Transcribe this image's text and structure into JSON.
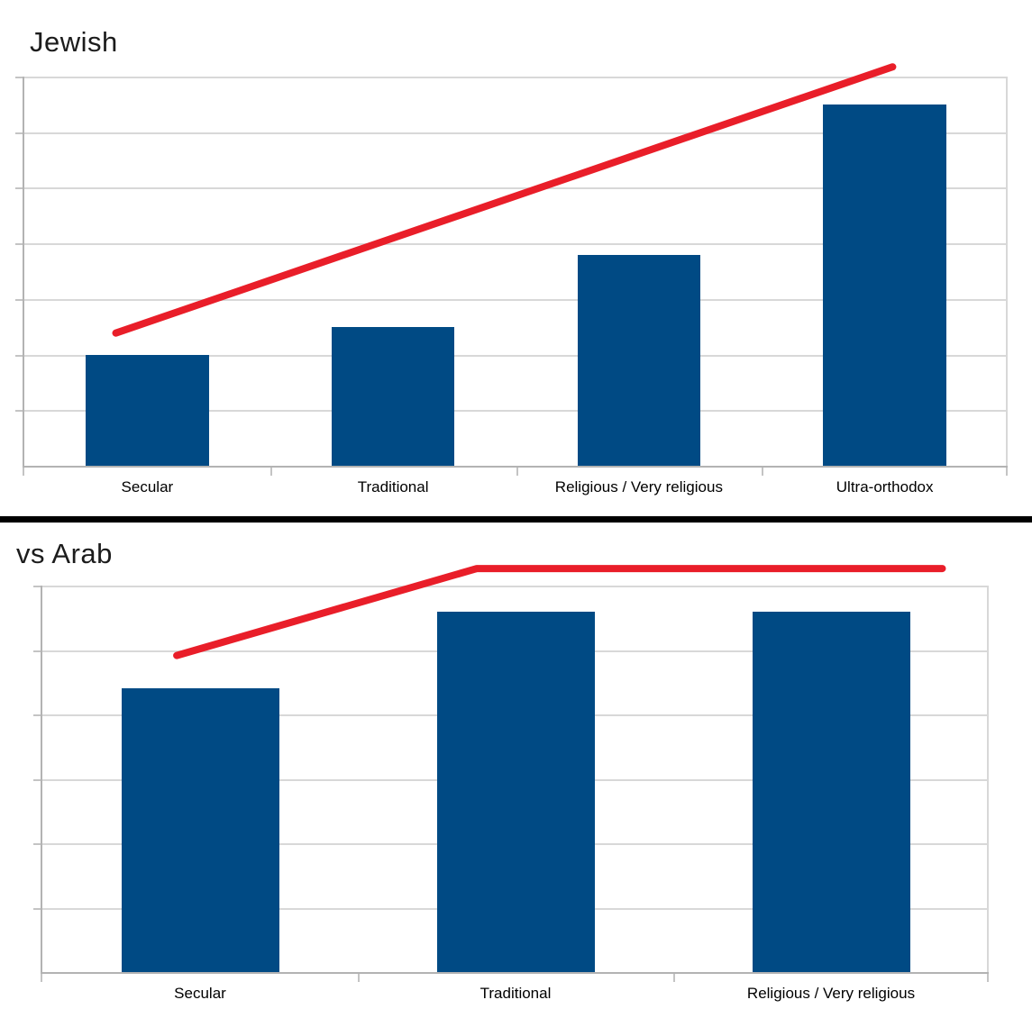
{
  "chart_data": [
    {
      "type": "bar",
      "title": "Jewish",
      "categories": [
        "Secular",
        "Traditional",
        "Religious / Very religious",
        "Ultra-orthodox"
      ],
      "values": [
        2.0,
        2.5,
        3.8,
        6.5
      ],
      "ylim": [
        0,
        7
      ],
      "gridline_step": 1,
      "xlabel": "",
      "ylabel": "",
      "y_tick_labels_visible": false,
      "grid": "horizontal",
      "legend": "none",
      "units_note": "y-axis unlabeled; values estimated in gridline intervals",
      "bar_color": "#004a84",
      "annotation_line": {
        "type": "straight-trend-line",
        "color": "#e91e29",
        "points_frac": [
          {
            "x": 0.093,
            "y": 0.341
          },
          {
            "x": 0.883,
            "y": 1.025
          }
        ]
      }
    },
    {
      "type": "bar",
      "title": "vs Arab",
      "categories": [
        "Secular",
        "Traditional",
        "Religious / Very religious"
      ],
      "values": [
        4.4,
        5.6,
        5.6
      ],
      "ylim": [
        0,
        6
      ],
      "gridline_step": 1,
      "xlabel": "",
      "ylabel": "",
      "y_tick_labels_visible": false,
      "grid": "horizontal",
      "legend": "none",
      "units_note": "y-axis unlabeled; values estimated in gridline intervals",
      "bar_color": "#004a84",
      "annotation_line": {
        "type": "bent-trend-line",
        "color": "#e91e29",
        "points_frac": [
          {
            "x": 0.142,
            "y": 0.819
          },
          {
            "x": 0.459,
            "y": 1.044
          },
          {
            "x": 0.951,
            "y": 1.044
          }
        ]
      }
    }
  ],
  "colors": {
    "bar": "#004a84",
    "trend_line": "#e91e29",
    "gridline": "#d8d8d8",
    "axis": "#b3b3b3",
    "divider": "#000000",
    "title_text": "#1c1c1c",
    "label_text": "#000000",
    "background": "#ffffff"
  }
}
